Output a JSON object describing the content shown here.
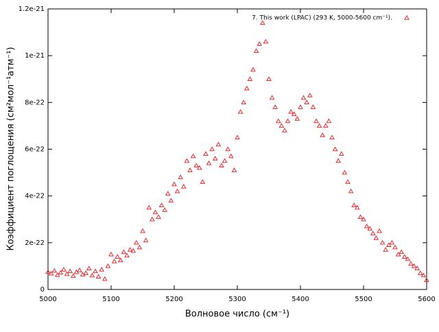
{
  "chart_data": {
    "type": "scatter",
    "xlabel": "Волновое число (см⁻¹)",
    "ylabel": "Коэффициент поглощения (см²мол⁻¹атм⁻¹)",
    "xlim": [
      5000,
      5600
    ],
    "xticks": [
      5000,
      5100,
      5200,
      5300,
      5400,
      5500,
      5600
    ],
    "ylim": [
      0,
      1.2e-21
    ],
    "yticks": [
      0,
      2e-22,
      4e-22,
      6e-22,
      8e-22,
      1e-21,
      1.2e-21
    ],
    "legend": "top-right",
    "series": [
      {
        "name": "7. This work (LPAC) (293 K, 5000-5600 cm⁻¹).",
        "color": "#e8282b",
        "x": [
          5000,
          5005,
          5010,
          5015,
          5020,
          5025,
          5030,
          5035,
          5040,
          5045,
          5050,
          5055,
          5060,
          5065,
          5070,
          5075,
          5080,
          5085,
          5090,
          5095,
          5100,
          5105,
          5110,
          5115,
          5120,
          5125,
          5130,
          5135,
          5140,
          5145,
          5150,
          5155,
          5160,
          5165,
          5170,
          5175,
          5180,
          5185,
          5190,
          5195,
          5200,
          5205,
          5210,
          5215,
          5220,
          5225,
          5230,
          5235,
          5240,
          5245,
          5250,
          5255,
          5260,
          5265,
          5270,
          5275,
          5280,
          5285,
          5290,
          5295,
          5300,
          5305,
          5310,
          5315,
          5320,
          5325,
          5330,
          5335,
          5340,
          5345,
          5350,
          5355,
          5360,
          5365,
          5370,
          5375,
          5380,
          5385,
          5390,
          5395,
          5400,
          5405,
          5410,
          5415,
          5420,
          5425,
          5430,
          5435,
          5440,
          5445,
          5450,
          5455,
          5460,
          5465,
          5470,
          5475,
          5480,
          5485,
          5490,
          5495,
          5500,
          5505,
          5510,
          5515,
          5520,
          5525,
          5530,
          5535,
          5540,
          5545,
          5550,
          5555,
          5560,
          5565,
          5570,
          5575,
          5580,
          5585,
          5590,
          5595,
          5600
        ],
        "values": [
          7.5e-23,
          6.8e-23,
          8e-23,
          6.2e-23,
          7.2e-23,
          8.5e-23,
          6.6e-23,
          7.8e-23,
          5.8e-23,
          7.4e-23,
          8.2e-23,
          6.4e-23,
          7e-23,
          9e-23,
          6e-23,
          7.8e-23,
          5.5e-23,
          8.5e-23,
          4.5e-23,
          1e-22,
          1.5e-22,
          1.2e-22,
          1.4e-22,
          1.25e-22,
          1.6e-22,
          1.45e-22,
          1.7e-22,
          1.65e-22,
          2e-22,
          1.8e-22,
          2.5e-22,
          2.1e-22,
          3.5e-22,
          3e-22,
          3.3e-22,
          3.1e-22,
          3.6e-22,
          3.4e-22,
          4.1e-22,
          3.8e-22,
          4.5e-22,
          4.2e-22,
          4.8e-22,
          4.4e-22,
          5.5e-22,
          5.1e-22,
          5.7e-22,
          5.3e-22,
          5.2e-22,
          4.6e-22,
          5.8e-22,
          5.4e-22,
          6e-22,
          5.6e-22,
          6.2e-22,
          5.3e-22,
          5.5e-22,
          6e-22,
          5.7e-22,
          5.1e-22,
          6.5e-22,
          7.6e-22,
          8e-22,
          8.6e-22,
          9e-22,
          9.4e-22,
          1.02e-21,
          1.05e-21,
          1.14e-21,
          1.06e-21,
          9e-22,
          8.2e-22,
          7.8e-22,
          7.2e-22,
          7e-22,
          6.8e-22,
          7.2e-22,
          7.6e-22,
          7.5e-22,
          7.3e-22,
          7.8e-22,
          8.2e-22,
          8e-22,
          8.3e-22,
          7.8e-22,
          7.2e-22,
          7e-22,
          6.6e-22,
          7e-22,
          7.2e-22,
          6.5e-22,
          6e-22,
          5.5e-22,
          5.8e-22,
          5e-22,
          4.6e-22,
          4.2e-22,
          3.6e-22,
          3.5e-22,
          3.1e-22,
          3e-22,
          2.7e-22,
          2.6e-22,
          2.4e-22,
          2.2e-22,
          2.5e-22,
          2e-22,
          1.7e-22,
          1.9e-22,
          2e-22,
          1.8e-22,
          1.5e-22,
          1.6e-22,
          1.4e-22,
          1.3e-22,
          1.1e-22,
          1e-22,
          9e-23,
          7e-23,
          6e-23,
          4e-23
        ]
      }
    ]
  }
}
